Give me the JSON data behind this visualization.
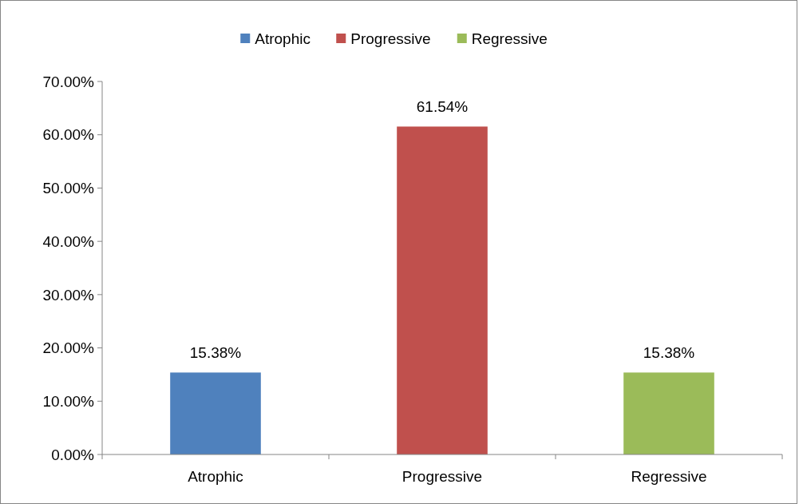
{
  "chart_data": {
    "type": "bar",
    "categories": [
      "Atrophic",
      "Progressive",
      "Regressive"
    ],
    "series": [
      {
        "name": "Atrophic",
        "color": "#4f81bd",
        "values": [
          15.38,
          null,
          null
        ],
        "value_labels": [
          "15.38%",
          null,
          null
        ]
      },
      {
        "name": "Progressive",
        "color": "#c0504d",
        "values": [
          null,
          61.54,
          null
        ],
        "value_labels": [
          null,
          "61.54%",
          null
        ]
      },
      {
        "name": "Regressive",
        "color": "#9bbb59",
        "values": [
          null,
          null,
          15.38
        ],
        "value_labels": [
          null,
          null,
          "15.38%"
        ]
      }
    ],
    "ylim": [
      0,
      70
    ],
    "yticks": [
      {
        "value": 0,
        "label": "0.00%"
      },
      {
        "value": 10,
        "label": "10.00%"
      },
      {
        "value": 20,
        "label": "20.00%"
      },
      {
        "value": 30,
        "label": "30.00%"
      },
      {
        "value": 40,
        "label": "40.00%"
      },
      {
        "value": 50,
        "label": "50.00%"
      },
      {
        "value": 60,
        "label": "60.00%"
      },
      {
        "value": 70,
        "label": "70.00%"
      }
    ],
    "legend": "top",
    "grid": false
  }
}
